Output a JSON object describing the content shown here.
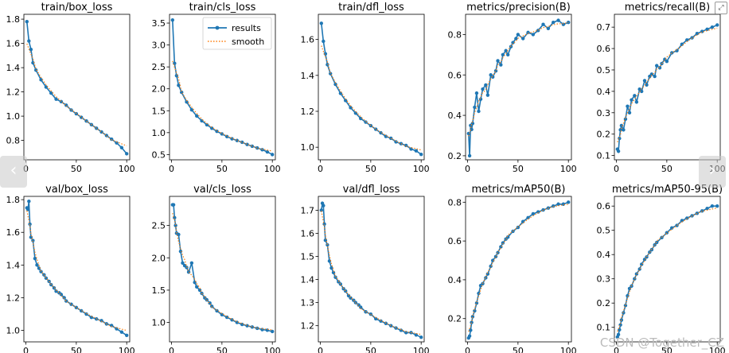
{
  "chart_data": [
    {
      "type": "line",
      "title": "train/box_loss",
      "xlim": [
        -2,
        103
      ],
      "ylim": [
        0.64,
        1.84
      ],
      "yticks": [
        0.8,
        1.0,
        1.2,
        1.4,
        1.6,
        1.8
      ],
      "xticks": [
        0,
        50,
        100
      ],
      "legend": false,
      "series": [
        {
          "name": "results",
          "x": [
            1,
            3,
            5,
            7,
            10,
            15,
            20,
            25,
            30,
            35,
            40,
            45,
            50,
            55,
            60,
            65,
            70,
            75,
            80,
            85,
            90,
            95,
            100
          ],
          "values": [
            1.78,
            1.62,
            1.55,
            1.44,
            1.38,
            1.3,
            1.24,
            1.19,
            1.14,
            1.12,
            1.09,
            1.05,
            1.02,
            0.99,
            0.96,
            0.93,
            0.9,
            0.87,
            0.84,
            0.81,
            0.78,
            0.74,
            0.69
          ]
        }
      ]
    },
    {
      "type": "line",
      "title": "train/cls_loss",
      "xlim": [
        -2,
        103
      ],
      "ylim": [
        0.38,
        3.7
      ],
      "yticks": [
        0.5,
        1.0,
        1.5,
        2.0,
        2.5,
        3.0,
        3.5
      ],
      "xticks": [
        0,
        50,
        100
      ],
      "legend": true,
      "legend_items": [
        "results",
        "smooth"
      ],
      "series": [
        {
          "name": "results",
          "x": [
            1,
            3,
            5,
            7,
            10,
            15,
            20,
            25,
            30,
            35,
            40,
            45,
            50,
            55,
            60,
            65,
            70,
            75,
            80,
            85,
            90,
            95,
            100
          ],
          "values": [
            3.57,
            2.58,
            2.3,
            2.08,
            1.92,
            1.7,
            1.52,
            1.38,
            1.27,
            1.18,
            1.1,
            1.03,
            0.97,
            0.91,
            0.86,
            0.82,
            0.78,
            0.73,
            0.69,
            0.65,
            0.61,
            0.56,
            0.5
          ]
        }
      ]
    },
    {
      "type": "line",
      "title": "train/dfl_loss",
      "xlim": [
        -2,
        103
      ],
      "ylim": [
        0.93,
        1.74
      ],
      "yticks": [
        1.0,
        1.2,
        1.4,
        1.6
      ],
      "xticks": [
        0,
        50,
        100
      ],
      "legend": false,
      "series": [
        {
          "name": "results",
          "x": [
            1,
            3,
            5,
            7,
            10,
            15,
            20,
            25,
            30,
            35,
            40,
            45,
            50,
            55,
            60,
            65,
            70,
            75,
            80,
            85,
            90,
            95,
            100
          ],
          "values": [
            1.69,
            1.59,
            1.52,
            1.46,
            1.41,
            1.35,
            1.3,
            1.26,
            1.22,
            1.19,
            1.16,
            1.14,
            1.12,
            1.1,
            1.08,
            1.06,
            1.05,
            1.03,
            1.02,
            1.01,
            0.99,
            0.98,
            0.96
          ]
        }
      ]
    },
    {
      "type": "line",
      "title": "metrics/precision(B)",
      "xlim": [
        -2,
        103
      ],
      "ylim": [
        0.18,
        0.9
      ],
      "yticks": [
        0.2,
        0.4,
        0.6,
        0.8
      ],
      "xticks": [
        0,
        50,
        100
      ],
      "legend": false,
      "series": [
        {
          "name": "results",
          "x": [
            1,
            2,
            3,
            4,
            5,
            7,
            9,
            11,
            13,
            15,
            18,
            20,
            23,
            25,
            28,
            30,
            33,
            35,
            38,
            40,
            43,
            45,
            48,
            50,
            55,
            60,
            65,
            70,
            75,
            80,
            85,
            90,
            95,
            100
          ],
          "values": [
            0.31,
            0.2,
            0.35,
            0.33,
            0.36,
            0.44,
            0.51,
            0.42,
            0.48,
            0.53,
            0.55,
            0.5,
            0.6,
            0.59,
            0.62,
            0.67,
            0.65,
            0.7,
            0.72,
            0.7,
            0.74,
            0.76,
            0.78,
            0.8,
            0.78,
            0.81,
            0.8,
            0.82,
            0.85,
            0.83,
            0.86,
            0.87,
            0.85,
            0.86
          ]
        }
      ]
    },
    {
      "type": "line",
      "title": "metrics/recall(B)",
      "xlim": [
        -2,
        103
      ],
      "ylim": [
        0.08,
        0.76
      ],
      "yticks": [
        0.1,
        0.2,
        0.3,
        0.4,
        0.5,
        0.6,
        0.7
      ],
      "xticks": [
        0,
        50,
        100
      ],
      "legend": false,
      "series": [
        {
          "name": "results",
          "x": [
            1,
            2,
            3,
            4,
            5,
            7,
            9,
            11,
            13,
            15,
            18,
            20,
            23,
            25,
            28,
            30,
            33,
            35,
            38,
            40,
            43,
            45,
            48,
            50,
            55,
            60,
            65,
            70,
            75,
            80,
            85,
            90,
            95,
            100
          ],
          "values": [
            0.13,
            0.12,
            0.18,
            0.22,
            0.24,
            0.22,
            0.27,
            0.33,
            0.3,
            0.36,
            0.38,
            0.35,
            0.41,
            0.4,
            0.45,
            0.43,
            0.47,
            0.48,
            0.47,
            0.52,
            0.51,
            0.53,
            0.55,
            0.54,
            0.58,
            0.59,
            0.62,
            0.64,
            0.65,
            0.67,
            0.68,
            0.69,
            0.7,
            0.71
          ]
        }
      ]
    },
    {
      "type": "line",
      "title": "val/box_loss",
      "xlim": [
        -2,
        103
      ],
      "ylim": [
        0.93,
        1.82
      ],
      "yticks": [
        1.0,
        1.2,
        1.4,
        1.6,
        1.8
      ],
      "xticks": [
        0,
        50,
        100
      ],
      "legend": false,
      "series": [
        {
          "name": "results",
          "x": [
            1,
            2,
            3,
            4,
            5,
            7,
            9,
            11,
            13,
            15,
            18,
            20,
            23,
            25,
            28,
            30,
            33,
            35,
            38,
            40,
            45,
            50,
            55,
            60,
            65,
            70,
            75,
            80,
            85,
            90,
            95,
            100
          ],
          "values": [
            1.75,
            1.74,
            1.79,
            1.65,
            1.57,
            1.55,
            1.44,
            1.4,
            1.38,
            1.36,
            1.34,
            1.32,
            1.3,
            1.28,
            1.26,
            1.24,
            1.23,
            1.22,
            1.2,
            1.18,
            1.16,
            1.14,
            1.12,
            1.1,
            1.08,
            1.07,
            1.06,
            1.04,
            1.03,
            1.01,
            0.99,
            0.97
          ]
        }
      ]
    },
    {
      "type": "line",
      "title": "val/cls_loss",
      "xlim": [
        -2,
        103
      ],
      "ylim": [
        0.7,
        2.95
      ],
      "yticks": [
        1.0,
        1.5,
        2.0,
        2.5
      ],
      "xticks": [
        0,
        50,
        100
      ],
      "legend": false,
      "series": [
        {
          "name": "results",
          "x": [
            1,
            2,
            3,
            4,
            5,
            7,
            9,
            11,
            13,
            15,
            17,
            20,
            23,
            25,
            28,
            30,
            33,
            35,
            38,
            40,
            45,
            50,
            55,
            60,
            65,
            70,
            75,
            80,
            85,
            90,
            95,
            100
          ],
          "values": [
            2.82,
            2.82,
            2.62,
            2.5,
            2.38,
            2.36,
            2.1,
            1.92,
            1.88,
            1.85,
            1.78,
            1.92,
            1.62,
            1.55,
            1.5,
            1.45,
            1.38,
            1.35,
            1.3,
            1.25,
            1.18,
            1.12,
            1.08,
            1.04,
            1.0,
            0.97,
            0.95,
            0.93,
            0.91,
            0.89,
            0.88,
            0.86
          ]
        }
      ]
    },
    {
      "type": "line",
      "title": "val/dfl_loss",
      "xlim": [
        -2,
        103
      ],
      "ylim": [
        1.13,
        1.76
      ],
      "yticks": [
        1.2,
        1.3,
        1.4,
        1.5,
        1.6,
        1.7
      ],
      "xticks": [
        0,
        50,
        100
      ],
      "legend": false,
      "series": [
        {
          "name": "results",
          "x": [
            1,
            2,
            3,
            4,
            5,
            7,
            9,
            11,
            13,
            15,
            18,
            20,
            23,
            25,
            28,
            30,
            33,
            35,
            38,
            40,
            45,
            50,
            55,
            60,
            65,
            70,
            75,
            80,
            85,
            90,
            95,
            100
          ],
          "values": [
            1.7,
            1.73,
            1.72,
            1.64,
            1.57,
            1.55,
            1.48,
            1.45,
            1.43,
            1.41,
            1.39,
            1.38,
            1.36,
            1.35,
            1.33,
            1.32,
            1.31,
            1.3,
            1.29,
            1.28,
            1.26,
            1.25,
            1.23,
            1.22,
            1.21,
            1.2,
            1.19,
            1.18,
            1.17,
            1.17,
            1.16,
            1.15
          ]
        }
      ]
    },
    {
      "type": "line",
      "title": "metrics/mAP50(B)",
      "xlim": [
        -2,
        103
      ],
      "ylim": [
        0.08,
        0.83
      ],
      "yticks": [
        0.2,
        0.4,
        0.6,
        0.8
      ],
      "xticks": [
        0,
        50,
        100
      ],
      "legend": false,
      "series": [
        {
          "name": "results",
          "x": [
            1,
            2,
            3,
            4,
            5,
            7,
            9,
            11,
            13,
            15,
            18,
            20,
            23,
            25,
            28,
            30,
            33,
            35,
            38,
            40,
            45,
            50,
            55,
            60,
            65,
            70,
            75,
            80,
            85,
            90,
            95,
            100
          ],
          "values": [
            0.1,
            0.11,
            0.14,
            0.18,
            0.21,
            0.24,
            0.28,
            0.33,
            0.37,
            0.38,
            0.41,
            0.43,
            0.47,
            0.5,
            0.52,
            0.54,
            0.57,
            0.59,
            0.61,
            0.62,
            0.65,
            0.67,
            0.7,
            0.72,
            0.74,
            0.75,
            0.76,
            0.77,
            0.78,
            0.79,
            0.79,
            0.8
          ]
        }
      ]
    },
    {
      "type": "line",
      "title": "metrics/mAP50-95(B)",
      "xlim": [
        -2,
        103
      ],
      "ylim": [
        0.04,
        0.64
      ],
      "yticks": [
        0.1,
        0.2,
        0.3,
        0.4,
        0.5,
        0.6
      ],
      "xticks": [
        0,
        50,
        100
      ],
      "legend": false,
      "series": [
        {
          "name": "results",
          "x": [
            1,
            2,
            3,
            4,
            5,
            7,
            9,
            11,
            13,
            15,
            18,
            20,
            23,
            25,
            28,
            30,
            33,
            35,
            38,
            40,
            45,
            50,
            55,
            60,
            65,
            70,
            75,
            80,
            85,
            90,
            95,
            100
          ],
          "values": [
            0.06,
            0.07,
            0.09,
            0.11,
            0.13,
            0.16,
            0.19,
            0.23,
            0.26,
            0.27,
            0.3,
            0.32,
            0.34,
            0.36,
            0.38,
            0.39,
            0.41,
            0.42,
            0.44,
            0.45,
            0.47,
            0.49,
            0.51,
            0.52,
            0.54,
            0.55,
            0.56,
            0.57,
            0.58,
            0.59,
            0.6,
            0.6
          ]
        }
      ]
    }
  ],
  "colors": {
    "results": "#1f77b4",
    "smooth": "#ff7f0e",
    "axis": "#000000"
  },
  "legend_labels": {
    "results": "results",
    "smooth": "smooth"
  },
  "nav": {
    "prev": "‹",
    "next": "›",
    "zoom": "⤢"
  },
  "watermark": "CSDN @Together_CZ"
}
